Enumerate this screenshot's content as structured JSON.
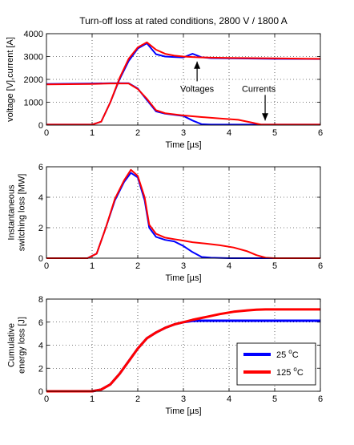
{
  "title": "Turn-off loss at rated conditions, 2800 V / 1800 A",
  "colors": {
    "blue": "#0000ff",
    "red": "#ff0000",
    "axis": "#000000",
    "background": "#ffffff"
  },
  "chart_data": [
    {
      "type": "line",
      "title": "Turn-off loss at rated conditions, 2800 V / 1800 A",
      "xlabel": "Time [µs]",
      "ylabel": "voltage [V],current [A]",
      "xlim": [
        0,
        6
      ],
      "ylim": [
        0,
        4000
      ],
      "xticks": [
        "0",
        "1",
        "2",
        "3",
        "4",
        "5",
        "6"
      ],
      "yticks": [
        "0",
        "1000",
        "2000",
        "3000",
        "4000"
      ],
      "grid": true,
      "annotations": [
        {
          "text": "Voltages",
          "x": 3.3,
          "y": 1600
        },
        {
          "text": "Currents",
          "x": 4.65,
          "y": 1600
        }
      ],
      "series": [
        {
          "color": "#0000ff",
          "x": [
            0,
            1,
            1.2,
            1.4,
            1.6,
            1.8,
            2.0,
            2.2,
            2.4,
            2.6,
            2.8,
            3.0,
            3.2,
            3.4,
            3.6,
            4,
            5,
            6
          ],
          "y": [
            20,
            20,
            150,
            1000,
            2000,
            2800,
            3350,
            3580,
            3100,
            3000,
            2980,
            2960,
            3120,
            2970,
            2930,
            2920,
            2900,
            2890
          ]
        },
        {
          "color": "#ff0000",
          "x": [
            0,
            1,
            1.2,
            1.4,
            1.6,
            1.8,
            2.0,
            2.2,
            2.4,
            2.6,
            2.8,
            3.0,
            3.2,
            3.4,
            3.6,
            4,
            5,
            6
          ],
          "y": [
            20,
            20,
            150,
            1000,
            2050,
            2900,
            3400,
            3620,
            3300,
            3120,
            3040,
            3000,
            2980,
            2960,
            2950,
            2940,
            2920,
            2900
          ]
        },
        {
          "color": "#0000ff",
          "x": [
            0,
            1,
            1.4,
            1.8,
            2.0,
            2.2,
            2.4,
            2.6,
            3.0,
            3.2,
            3.4,
            3.6,
            4,
            6
          ],
          "y": [
            1800,
            1820,
            1830,
            1830,
            1600,
            1100,
            600,
            500,
            400,
            200,
            40,
            20,
            20,
            20
          ]
        },
        {
          "color": "#ff0000",
          "x": [
            0,
            1,
            1.4,
            1.8,
            2.0,
            2.2,
            2.4,
            2.6,
            3.0,
            3.4,
            3.8,
            4.2,
            4.5,
            4.7,
            5,
            6
          ],
          "y": [
            1780,
            1800,
            1820,
            1820,
            1580,
            1150,
            650,
            520,
            420,
            350,
            290,
            230,
            110,
            20,
            20,
            20
          ]
        }
      ]
    },
    {
      "type": "line",
      "xlabel": "Time [µs]",
      "ylabel": "Instantaneous switching loss [MW]",
      "ylabel_lines": [
        "Instantaneous",
        "switching loss [MW]"
      ],
      "xlim": [
        0,
        6
      ],
      "ylim": [
        0,
        6
      ],
      "xticks": [
        "0",
        "1",
        "2",
        "3",
        "4",
        "5",
        "6"
      ],
      "yticks": [
        "0",
        "2",
        "4",
        "6"
      ],
      "grid": true,
      "series": [
        {
          "color": "#0000ff",
          "x": [
            0,
            0.9,
            1.1,
            1.3,
            1.5,
            1.7,
            1.85,
            2.0,
            2.15,
            2.25,
            2.4,
            2.6,
            2.8,
            3.0,
            3.2,
            3.4,
            3.6,
            4,
            6
          ],
          "y": [
            0,
            0,
            0.3,
            2.0,
            3.8,
            5.0,
            5.6,
            5.3,
            3.8,
            2.0,
            1.4,
            1.2,
            1.1,
            0.8,
            0.4,
            0.08,
            0.03,
            0,
            0
          ]
        },
        {
          "color": "#ff0000",
          "x": [
            0,
            0.9,
            1.1,
            1.3,
            1.5,
            1.7,
            1.85,
            2.0,
            2.15,
            2.25,
            2.4,
            2.6,
            2.8,
            3.0,
            3.2,
            3.5,
            3.8,
            4.1,
            4.4,
            4.6,
            4.8,
            5,
            6
          ],
          "y": [
            0,
            0,
            0.3,
            2.0,
            3.9,
            5.1,
            5.8,
            5.4,
            4.0,
            2.2,
            1.6,
            1.35,
            1.25,
            1.15,
            1.05,
            0.95,
            0.85,
            0.7,
            0.45,
            0.2,
            0.03,
            0,
            0
          ]
        }
      ]
    },
    {
      "type": "line",
      "xlabel": "Time [µs]",
      "ylabel": "Cumulative energy loss [J]",
      "ylabel_lines": [
        "Cumulative",
        "energy loss [J]"
      ],
      "xlim": [
        0,
        6
      ],
      "ylim": [
        0,
        8
      ],
      "xticks": [
        "0",
        "1",
        "2",
        "3",
        "4",
        "5",
        "6"
      ],
      "yticks": [
        "0",
        "2",
        "4",
        "6",
        "8"
      ],
      "grid": true,
      "legend_position": "bottom-right",
      "series": [
        {
          "name": "25 °C",
          "name_base": "25 ",
          "name_sup": "o",
          "name_unit": "C",
          "color": "#0000ff",
          "x": [
            0,
            1,
            1.2,
            1.4,
            1.6,
            1.8,
            2.0,
            2.2,
            2.4,
            2.6,
            2.8,
            3.0,
            3.2,
            3.4,
            3.6,
            4,
            5,
            6
          ],
          "y": [
            0,
            0,
            0.15,
            0.6,
            1.5,
            2.6,
            3.7,
            4.6,
            5.1,
            5.5,
            5.8,
            6.0,
            6.1,
            6.12,
            6.12,
            6.12,
            6.12,
            6.12
          ]
        },
        {
          "name": "125 °C",
          "name_base": "125 ",
          "name_sup": "o",
          "name_unit": "C",
          "color": "#ff0000",
          "x": [
            0,
            1,
            1.2,
            1.4,
            1.6,
            1.8,
            2.0,
            2.2,
            2.4,
            2.6,
            2.8,
            3.0,
            3.2,
            3.5,
            3.8,
            4.1,
            4.4,
            4.6,
            4.8,
            5,
            6
          ],
          "y": [
            0,
            0,
            0.15,
            0.6,
            1.5,
            2.6,
            3.7,
            4.6,
            5.1,
            5.5,
            5.8,
            6.0,
            6.2,
            6.45,
            6.7,
            6.9,
            7.02,
            7.08,
            7.1,
            7.1,
            7.1
          ]
        }
      ]
    }
  ]
}
